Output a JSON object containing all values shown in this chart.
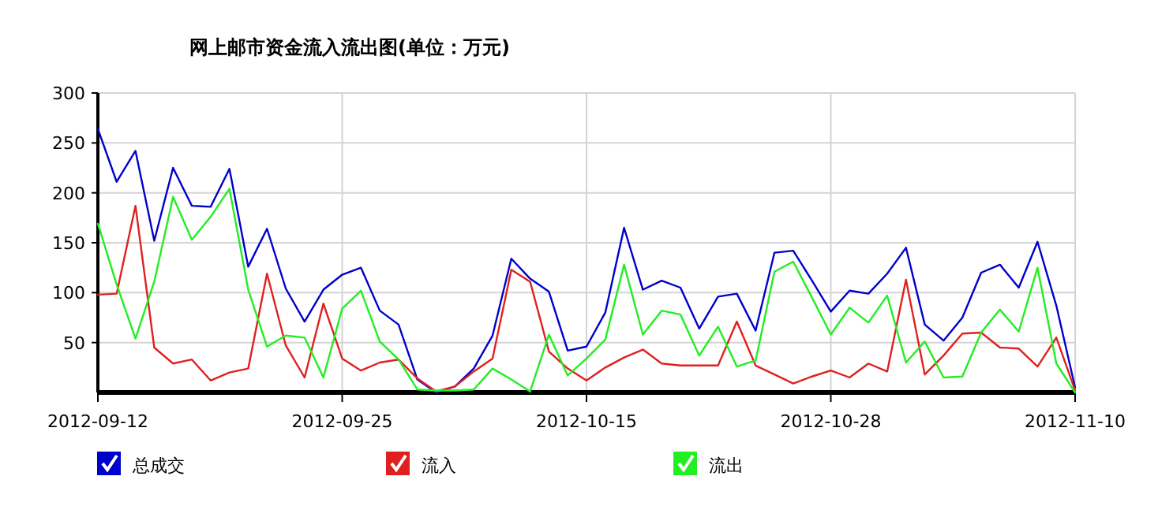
{
  "chart_data": {
    "type": "line",
    "title": "网上邮市资金流入流出图(单位：万元)",
    "categories": [
      "2012-09-12",
      null,
      null,
      null,
      null,
      null,
      null,
      null,
      null,
      null,
      null,
      null,
      null,
      "2012-09-25",
      null,
      null,
      null,
      null,
      null,
      null,
      null,
      null,
      null,
      null,
      null,
      null,
      "2012-10-15",
      null,
      null,
      null,
      null,
      null,
      null,
      null,
      null,
      null,
      null,
      null,
      null,
      "2012-10-28",
      null,
      null,
      null,
      null,
      null,
      null,
      null,
      null,
      null,
      null,
      null,
      null,
      "2012-11-10"
    ],
    "series": [
      {
        "name": "总成交",
        "color": "#0000cc",
        "values": [
          264,
          211,
          242,
          152,
          225,
          187,
          186,
          224,
          126,
          164,
          104,
          71,
          103,
          118,
          125,
          82,
          68,
          13,
          0,
          6,
          24,
          57,
          134,
          114,
          101,
          42,
          46,
          80,
          165,
          103,
          112,
          105,
          64,
          96,
          99,
          62,
          140,
          142,
          112,
          81,
          102,
          99,
          119,
          145,
          68,
          52,
          75,
          120,
          128,
          105,
          151,
          87,
          5
        ]
      },
      {
        "name": "流入",
        "color": "#e02020",
        "values": [
          98,
          99,
          187,
          45,
          29,
          33,
          12,
          20,
          24,
          119,
          47,
          15,
          89,
          34,
          22,
          30,
          33,
          14,
          1,
          6,
          21,
          34,
          123,
          111,
          41,
          24,
          12,
          25,
          35,
          43,
          29,
          27,
          27,
          27,
          71,
          27,
          18,
          9,
          16,
          22,
          15,
          29,
          21,
          113,
          18,
          37,
          59,
          60,
          45,
          44,
          26,
          55,
          2
        ]
      },
      {
        "name": "流出",
        "color": "#22ee22",
        "values": [
          169,
          108,
          54,
          111,
          196,
          153,
          176,
          204,
          103,
          46,
          57,
          55,
          15,
          84,
          102,
          51,
          33,
          3,
          2,
          2,
          3,
          24,
          13,
          1,
          58,
          17,
          34,
          53,
          128,
          58,
          82,
          78,
          37,
          66,
          26,
          32,
          121,
          131,
          95,
          58,
          85,
          70,
          97,
          30,
          51,
          15,
          16,
          60,
          83,
          61,
          125,
          29,
          0
        ]
      }
    ],
    "ylim": [
      0,
      300
    ],
    "yticks": [
      50,
      100,
      150,
      200,
      250,
      300
    ],
    "grid": true,
    "legend": "bottom",
    "marker": "none",
    "line_style": "solid"
  }
}
